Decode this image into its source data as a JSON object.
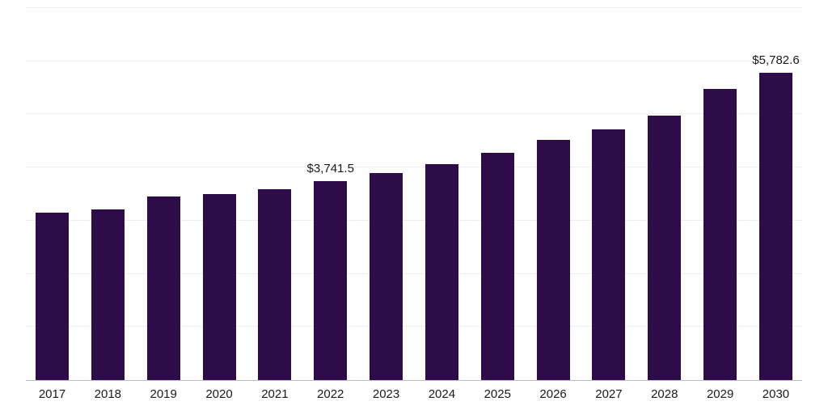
{
  "chart_data": {
    "type": "bar",
    "title": "",
    "xlabel": "",
    "ylabel": "",
    "categories": [
      "2017",
      "2018",
      "2019",
      "2020",
      "2021",
      "2022",
      "2023",
      "2024",
      "2025",
      "2026",
      "2027",
      "2028",
      "2029",
      "2030"
    ],
    "values": [
      3150,
      3210,
      3460,
      3505,
      3595,
      3741.5,
      3890,
      4060,
      4280,
      4520,
      4725,
      4980,
      5485,
      5782.6
    ],
    "data_labels": {
      "2022": "$3,741.5",
      "2030": "$5,782.6"
    },
    "ylim": [
      0,
      7000
    ],
    "gridline_step": 1000,
    "grid": "horizontal",
    "legend": "none",
    "y_axis_tick_labels_visible": false
  },
  "colors": {
    "bar": "#2d0c49",
    "gridline": "#ededed",
    "axis": "#bdbdbd",
    "label_text": "#1a1a1a",
    "background": "#ffffff"
  }
}
